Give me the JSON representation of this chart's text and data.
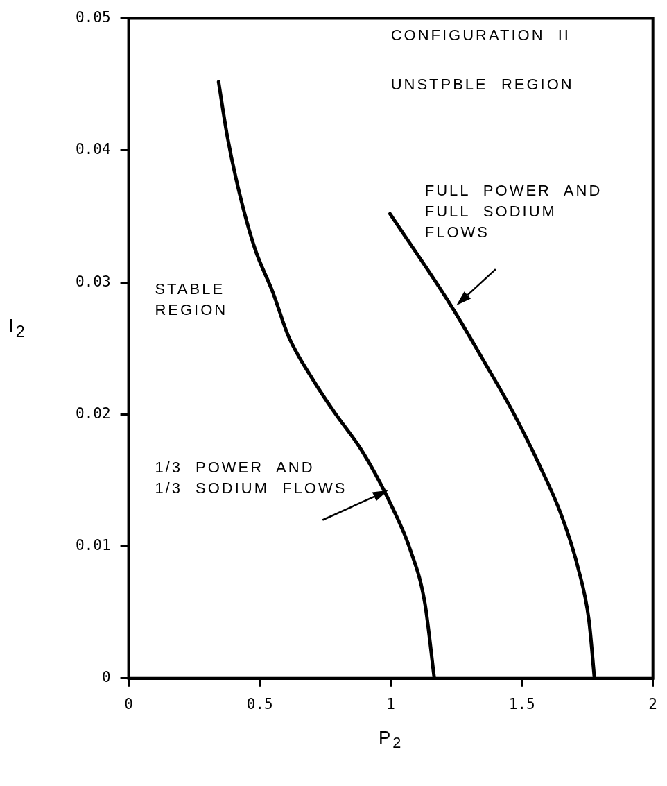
{
  "chart_data": {
    "type": "line",
    "xlabel": "P$_{2}$",
    "ylabel": "I$_{2}$",
    "xlim": [
      0,
      2
    ],
    "ylim": [
      0,
      0.05
    ],
    "xticks": [
      0,
      0.5,
      1,
      1.5,
      2
    ],
    "yticks": [
      0,
      0.01,
      0.02,
      0.03,
      0.04,
      0.05
    ],
    "legend": false,
    "marker": "none",
    "line_style": "solid",
    "annotations": [
      "CONFIGURATION II",
      "UNSTPBLE REGION",
      "STABLE REGION"
    ],
    "series": [
      {
        "name": "1/3 POWER AND 1/3 SODIUM FLOWS",
        "color": "#000000",
        "x": [
          0.343,
          0.377,
          0.421,
          0.481,
          0.551,
          0.61,
          0.704,
          0.787,
          0.888,
          0.99,
          1.075,
          1.13,
          1.166
        ],
        "values": [
          0.0452,
          0.041,
          0.0369,
          0.0326,
          0.0292,
          0.0259,
          0.0226,
          0.0201,
          0.0173,
          0.0136,
          0.0097,
          0.0057,
          0
        ]
      },
      {
        "name": "FULL POWER AND FULL SODIUM FLOWS",
        "color": "#000000",
        "x": [
          0.997,
          1.231,
          1.356,
          1.468,
          1.566,
          1.652,
          1.714,
          1.756,
          1.777
        ],
        "values": [
          0.0352,
          0.0282,
          0.024,
          0.0201,
          0.0162,
          0.0123,
          0.0084,
          0.0044,
          0
        ]
      }
    ]
  }
}
